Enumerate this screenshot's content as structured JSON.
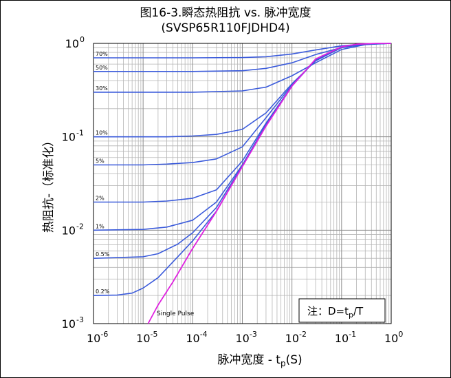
{
  "chart_data": {
    "type": "line",
    "title": "图16-3.瞬态热阻抗 vs. 脉冲宽度",
    "subtitle": "(SVSP65R110FJDHD4)",
    "xlabel": "脉冲宽度 - t",
    "xlabel_sub": "p",
    "xlabel_tail": "(S)",
    "ylabel": "热阻抗-（标准化）",
    "x_scale": "log",
    "y_scale": "log",
    "xlim": [
      1e-06,
      1
    ],
    "ylim": [
      0.001,
      1
    ],
    "grid": true,
    "x_ticks": [
      {
        "base": "10",
        "exp": "-6"
      },
      {
        "base": "10",
        "exp": "-5"
      },
      {
        "base": "10",
        "exp": "-4"
      },
      {
        "base": "10",
        "exp": "-3"
      },
      {
        "base": "10",
        "exp": "-2"
      },
      {
        "base": "10",
        "exp": "-1"
      },
      {
        "base": "10",
        "exp": "0"
      }
    ],
    "y_ticks": [
      {
        "base": "10",
        "exp": "0"
      },
      {
        "base": "10",
        "exp": "-1"
      },
      {
        "base": "10",
        "exp": "-2"
      },
      {
        "base": "10",
        "exp": "-3"
      }
    ],
    "note_prefix": "注：D=t",
    "note_sub": "p",
    "note_suffix": "/T",
    "colors": {
      "duty": "#3b5bdb",
      "single": "#e020e0",
      "grid": "#b4b4b4"
    },
    "single_pulse": {
      "name": "Single Pulse",
      "x": [
        1.26e-05,
        2e-05,
        4e-05,
        0.0001,
        0.0003,
        0.001,
        0.003,
        0.01,
        0.03,
        0.1,
        0.2,
        0.5,
        1
      ],
      "y": [
        0.001,
        0.00158,
        0.0028,
        0.0064,
        0.0159,
        0.048,
        0.13,
        0.35,
        0.68,
        0.92,
        0.98,
        1.0,
        1.0
      ]
    },
    "series": [
      {
        "name": "70%",
        "x": [
          1e-06,
          0.0001,
          0.001,
          0.003,
          0.01,
          0.03,
          0.1,
          0.3,
          1
        ],
        "y": [
          0.7,
          0.7,
          0.705,
          0.72,
          0.77,
          0.85,
          0.94,
          0.99,
          1.0
        ]
      },
      {
        "name": "50%",
        "x": [
          1e-06,
          0.0001,
          0.001,
          0.003,
          0.01,
          0.03,
          0.1,
          0.3,
          1
        ],
        "y": [
          0.5,
          0.5,
          0.51,
          0.54,
          0.62,
          0.76,
          0.9,
          0.98,
          1.0
        ]
      },
      {
        "name": "30%",
        "x": [
          1e-06,
          0.0001,
          0.001,
          0.003,
          0.01,
          0.03,
          0.1,
          0.3,
          1
        ],
        "y": [
          0.3,
          0.3,
          0.31,
          0.34,
          0.45,
          0.62,
          0.86,
          0.97,
          1.0
        ]
      },
      {
        "name": "10%",
        "x": [
          1e-06,
          3e-05,
          0.0001,
          0.0003,
          0.001,
          0.003,
          0.01,
          0.03,
          0.1,
          0.3,
          1
        ],
        "y": [
          0.1,
          0.1,
          0.102,
          0.106,
          0.12,
          0.18,
          0.37,
          0.65,
          0.9,
          0.98,
          1.0
        ]
      },
      {
        "name": "5%",
        "x": [
          1e-06,
          1e-05,
          3e-05,
          0.0001,
          0.0003,
          0.001,
          0.003,
          0.01,
          0.03,
          0.1,
          0.3,
          1
        ],
        "y": [
          0.05,
          0.05,
          0.051,
          0.053,
          0.058,
          0.078,
          0.16,
          0.36,
          0.66,
          0.91,
          0.98,
          1.0
        ]
      },
      {
        "name": "2%",
        "x": [
          1e-06,
          1e-05,
          3e-05,
          0.0001,
          0.0003,
          0.001,
          0.003,
          0.01,
          0.03,
          0.1,
          0.3,
          1
        ],
        "y": [
          0.02,
          0.02,
          0.0205,
          0.022,
          0.027,
          0.055,
          0.14,
          0.35,
          0.67,
          0.92,
          0.98,
          1.0
        ]
      },
      {
        "name": "1%",
        "x": [
          1e-06,
          1e-05,
          3e-05,
          0.0001,
          0.0003,
          0.001,
          0.003,
          0.01,
          0.03,
          0.1,
          0.3,
          1
        ],
        "y": [
          0.01,
          0.0102,
          0.0108,
          0.0128,
          0.02,
          0.05,
          0.135,
          0.35,
          0.67,
          0.92,
          0.98,
          1.0
        ]
      },
      {
        "name": "0.5%",
        "x": [
          1e-06,
          1e-05,
          2e-05,
          5e-05,
          0.0001,
          0.0003,
          0.001,
          0.003,
          0.01,
          0.03,
          0.1,
          0.3,
          1
        ],
        "y": [
          0.005,
          0.0052,
          0.0056,
          0.0071,
          0.0094,
          0.0175,
          0.049,
          0.133,
          0.35,
          0.67,
          0.92,
          0.98,
          1.0
        ]
      },
      {
        "name": "0.2%",
        "x": [
          1e-06,
          3e-06,
          6e-06,
          1e-05,
          2e-05,
          5e-05,
          0.0001,
          0.0003,
          0.001,
          0.003,
          0.01,
          0.03,
          0.1,
          0.3,
          1
        ],
        "y": [
          0.002,
          0.00202,
          0.00212,
          0.0024,
          0.0031,
          0.0052,
          0.0077,
          0.016,
          0.048,
          0.131,
          0.35,
          0.67,
          0.92,
          0.98,
          1.0
        ]
      }
    ]
  }
}
